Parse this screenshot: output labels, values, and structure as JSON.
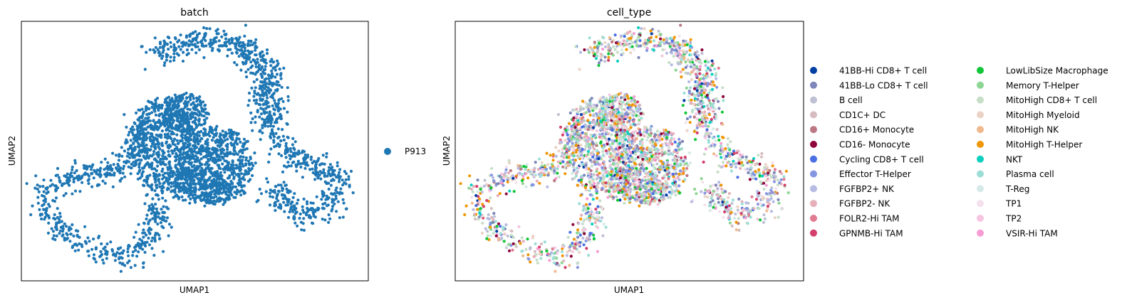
{
  "chart_data": [
    {
      "type": "scatter",
      "title": "batch",
      "xlabel": "UMAP1",
      "ylabel": "UMAP2",
      "xlim": [
        0,
        100
      ],
      "ylim": [
        0,
        100
      ],
      "grid": false,
      "ticks": false,
      "legend_placement": "right",
      "series": [
        {
          "name": "P913",
          "color": "#1f77b4"
        }
      ],
      "structure": {
        "description_points_per_branch": "scatter density approximated",
        "branches": [
          {
            "path": [
              [
                38,
                90
              ],
              [
                45,
                94
              ],
              [
                52,
                96
              ],
              [
                60,
                95
              ],
              [
                66,
                92
              ],
              [
                70,
                86
              ],
              [
                72,
                78
              ],
              [
                72,
                68
              ],
              [
                73,
                60
              ]
            ],
            "count": 520,
            "spread": 2.6
          },
          {
            "path": [
              [
                74,
                56
              ],
              [
                78,
                50
              ],
              [
                82,
                45
              ],
              [
                88,
                43
              ],
              [
                92,
                40
              ],
              [
                93,
                33
              ],
              [
                90,
                26
              ],
              [
                85,
                24
              ],
              [
                80,
                26
              ],
              [
                76,
                30
              ],
              [
                74,
                36
              ]
            ],
            "count": 380,
            "spread": 2.6
          },
          {
            "path": [
              [
                35,
                62
              ],
              [
                32,
                52
              ],
              [
                28,
                44
              ],
              [
                22,
                40
              ],
              [
                16,
                40
              ],
              [
                10,
                38
              ],
              [
                6,
                33
              ],
              [
                5,
                26
              ],
              [
                8,
                20
              ],
              [
                13,
                14
              ],
              [
                20,
                8
              ],
              [
                28,
                6
              ],
              [
                34,
                10
              ],
              [
                37,
                18
              ],
              [
                39,
                24
              ],
              [
                38,
                30
              ]
            ],
            "count": 560,
            "spread": 2.4
          }
        ],
        "blobs": [
          {
            "center": [
              40,
              52
            ],
            "rx": 10,
            "ry": 20,
            "count": 620
          },
          {
            "center": [
              56,
              44
            ],
            "rx": 12,
            "ry": 16,
            "count": 720
          },
          {
            "center": [
              47,
              66
            ],
            "rx": 7,
            "ry": 8,
            "count": 260
          },
          {
            "center": [
              50,
              36
            ],
            "rx": 9,
            "ry": 7,
            "count": 200
          }
        ]
      }
    },
    {
      "type": "scatter",
      "title": "cell_type",
      "xlabel": "UMAP1",
      "ylabel": "UMAP2",
      "xlim": [
        0,
        100
      ],
      "ylim": [
        0,
        100
      ],
      "grid": false,
      "ticks": false,
      "legend_placement": "right",
      "series": [
        {
          "name": "41BB-Hi CD8+ T cell",
          "color": "#023fa5"
        },
        {
          "name": "41BB-Lo CD8+ T cell",
          "color": "#7d87b9"
        },
        {
          "name": "B cell",
          "color": "#bec1d4"
        },
        {
          "name": "CD1C+ DC",
          "color": "#d6bcc0"
        },
        {
          "name": "CD16+ Monocyte",
          "color": "#bb7784"
        },
        {
          "name": "CD16- Monocyte",
          "color": "#8e063b"
        },
        {
          "name": "Cycling CD8+ T cell",
          "color": "#4a6fe3"
        },
        {
          "name": "Effector T-Helper",
          "color": "#8595e1"
        },
        {
          "name": "FGFBP2+ NK",
          "color": "#b5bbe3"
        },
        {
          "name": "FGFBP2- NK",
          "color": "#e6afb9"
        },
        {
          "name": "FOLR2-Hi TAM",
          "color": "#e07b91"
        },
        {
          "name": "GPNMB-Hi TAM",
          "color": "#d33f6a"
        },
        {
          "name": "LowLibSize Macrophage",
          "color": "#11c638"
        },
        {
          "name": "Memory T-Helper",
          "color": "#8dd593"
        },
        {
          "name": "MitoHigh CD8+ T cell",
          "color": "#c6dec7"
        },
        {
          "name": "MitoHigh Myeloid",
          "color": "#ead3c6"
        },
        {
          "name": "MitoHigh NK",
          "color": "#f0b98d"
        },
        {
          "name": "MitoHigh T-Helper",
          "color": "#ef9708"
        },
        {
          "name": "NKT",
          "color": "#0fcfc0"
        },
        {
          "name": "Plasma cell",
          "color": "#9cded6"
        },
        {
          "name": "T-Reg",
          "color": "#d5eae7"
        },
        {
          "name": "TP1",
          "color": "#f3e1eb"
        },
        {
          "name": "TP2",
          "color": "#f6c4e1"
        },
        {
          "name": "VSIR-Hi TAM",
          "color": "#f79cd4"
        }
      ]
    }
  ]
}
